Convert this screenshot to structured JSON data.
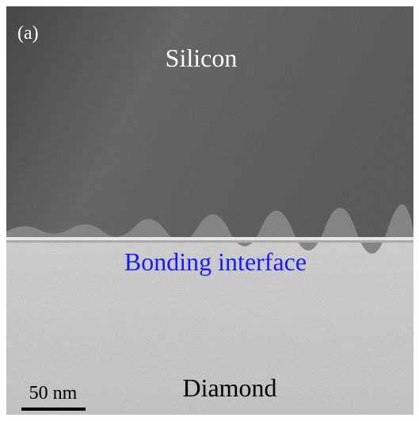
{
  "panel_label": "(a)",
  "regions": {
    "top": "Silicon",
    "interface": "Bonding interface",
    "bottom": "Diamond"
  },
  "scale_bar": {
    "label": "50 nm"
  }
}
